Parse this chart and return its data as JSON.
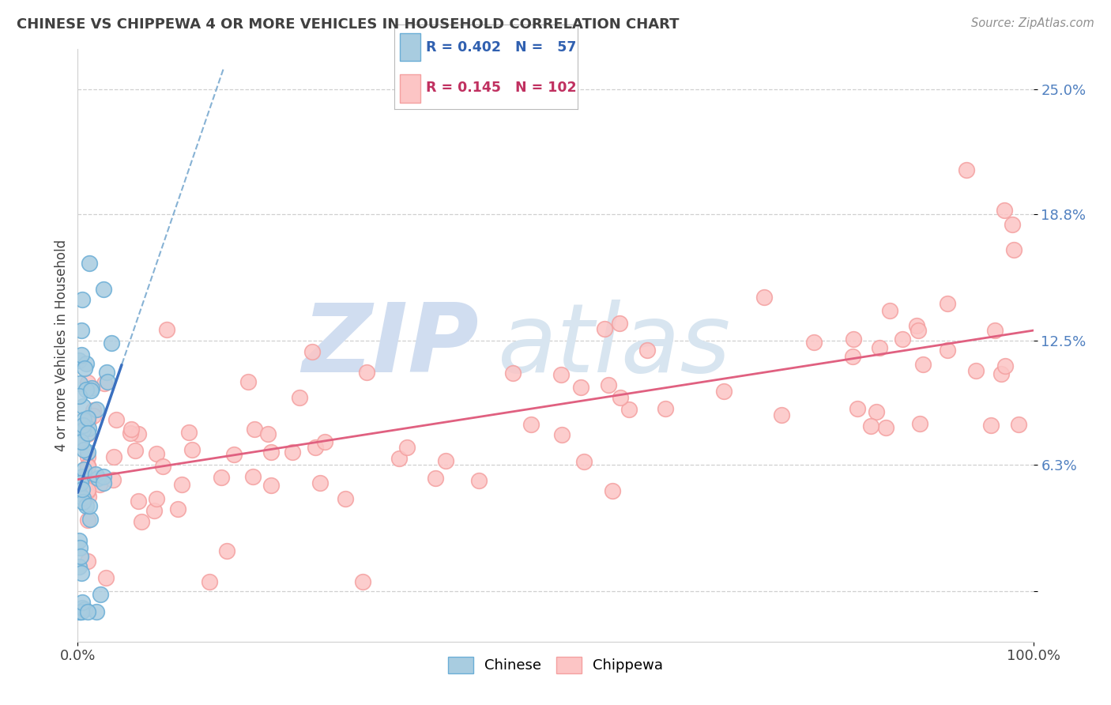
{
  "title": "CHINESE VS CHIPPEWA 4 OR MORE VEHICLES IN HOUSEHOLD CORRELATION CHART",
  "source": "Source: ZipAtlas.com",
  "ylabel": "4 or more Vehicles in Household",
  "xlim": [
    0.0,
    1.0
  ],
  "ylim": [
    -0.025,
    0.27
  ],
  "ytick_vals": [
    0.0,
    0.063,
    0.125,
    0.188,
    0.25
  ],
  "ytick_labels": [
    "",
    "6.3%",
    "12.5%",
    "18.8%",
    "25.0%"
  ],
  "xtick_vals": [
    0.0,
    1.0
  ],
  "xtick_labels": [
    "0.0%",
    "100.0%"
  ],
  "chinese_R": 0.402,
  "chinese_N": 57,
  "chippewa_R": 0.145,
  "chippewa_N": 102,
  "chinese_color": "#a8cce0",
  "chinese_edge_color": "#6baed6",
  "chippewa_color": "#fcc5c5",
  "chippewa_edge_color": "#f4a0a0",
  "chinese_line_color": "#3a6fbf",
  "chinese_dash_color": "#7aaad0",
  "chippewa_line_color": "#e06080",
  "background_color": "#ffffff",
  "grid_color": "#d0d0d0",
  "title_color": "#404040",
  "source_color": "#909090",
  "tick_color": "#5080c0",
  "watermark_zip_color": "#d0ddf0",
  "watermark_atlas_color": "#d8e5f0"
}
